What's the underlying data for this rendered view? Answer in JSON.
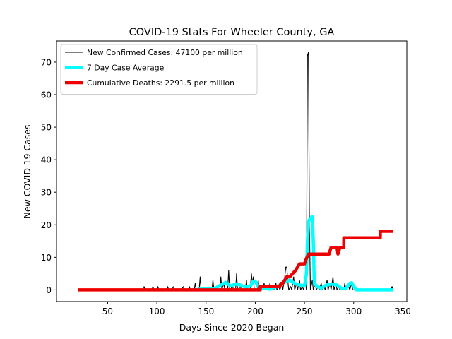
{
  "chart_data": {
    "type": "line",
    "title": "COVID-19 Stats For Wheeler County, GA",
    "xlabel": "Days Since 2020 Began",
    "ylabel": "New COVID-19 Cases",
    "xlim": [
      -2,
      354
    ],
    "ylim": [
      -3.6,
      76.5
    ],
    "xticks": [
      50,
      100,
      150,
      200,
      250,
      300,
      350
    ],
    "yticks": [
      0,
      10,
      20,
      30,
      40,
      50,
      60,
      70
    ],
    "grid": false,
    "legend_position": "top-left",
    "series": [
      {
        "name": "New Confirmed Cases: 47100 per million",
        "color": "#000000",
        "style": "thin",
        "points": [
          [
            20,
            0
          ],
          [
            85,
            0
          ],
          [
            87,
            1
          ],
          [
            88,
            0
          ],
          [
            95,
            0
          ],
          [
            96,
            1
          ],
          [
            97,
            0
          ],
          [
            100,
            0
          ],
          [
            101,
            1
          ],
          [
            102,
            0
          ],
          [
            110,
            0
          ],
          [
            111,
            1
          ],
          [
            112,
            0
          ],
          [
            115,
            0
          ],
          [
            117,
            1
          ],
          [
            118,
            0
          ],
          [
            125,
            0
          ],
          [
            127,
            1
          ],
          [
            128,
            0
          ],
          [
            132,
            0
          ],
          [
            133,
            1
          ],
          [
            134,
            0
          ],
          [
            138,
            0
          ],
          [
            139,
            2
          ],
          [
            140,
            0
          ],
          [
            143,
            0
          ],
          [
            144,
            4
          ],
          [
            145,
            0
          ],
          [
            150,
            0
          ],
          [
            152,
            1
          ],
          [
            153,
            0
          ],
          [
            156,
            0
          ],
          [
            157,
            3
          ],
          [
            158,
            0
          ],
          [
            160,
            0
          ],
          [
            161,
            1
          ],
          [
            162,
            0
          ],
          [
            164,
            0
          ],
          [
            165,
            4
          ],
          [
            166,
            0
          ],
          [
            168,
            2
          ],
          [
            169,
            0
          ],
          [
            172,
            0
          ],
          [
            173,
            6
          ],
          [
            174,
            0
          ],
          [
            177,
            1
          ],
          [
            178,
            0
          ],
          [
            180,
            0
          ],
          [
            181,
            5
          ],
          [
            182,
            0
          ],
          [
            185,
            1
          ],
          [
            186,
            0
          ],
          [
            190,
            0
          ],
          [
            191,
            3
          ],
          [
            192,
            0
          ],
          [
            195,
            0
          ],
          [
            196,
            5
          ],
          [
            197,
            2
          ],
          [
            198,
            4
          ],
          [
            199,
            0
          ],
          [
            202,
            0
          ],
          [
            203,
            3
          ],
          [
            204,
            0
          ],
          [
            206,
            1
          ],
          [
            207,
            0
          ],
          [
            209,
            2
          ],
          [
            210,
            0
          ],
          [
            212,
            1
          ],
          [
            213,
            0
          ],
          [
            215,
            2
          ],
          [
            216,
            0
          ],
          [
            218,
            1
          ],
          [
            219,
            0
          ],
          [
            221,
            2
          ],
          [
            222,
            0
          ],
          [
            224,
            1
          ],
          [
            225,
            0
          ],
          [
            227,
            2
          ],
          [
            228,
            0
          ],
          [
            230,
            4
          ],
          [
            231,
            7
          ],
          [
            232,
            7
          ],
          [
            233,
            3
          ],
          [
            234,
            0
          ],
          [
            236,
            1
          ],
          [
            237,
            0
          ],
          [
            239,
            4
          ],
          [
            240,
            0
          ],
          [
            242,
            2
          ],
          [
            243,
            0
          ],
          [
            245,
            3
          ],
          [
            246,
            0
          ],
          [
            248,
            1
          ],
          [
            249,
            0
          ],
          [
            251,
            2
          ],
          [
            252,
            0
          ],
          [
            253,
            72
          ],
          [
            254,
            73
          ],
          [
            255,
            20
          ],
          [
            256,
            0
          ],
          [
            258,
            3
          ],
          [
            259,
            0
          ],
          [
            261,
            2
          ],
          [
            262,
            0
          ],
          [
            264,
            1
          ],
          [
            265,
            0
          ],
          [
            267,
            2
          ],
          [
            268,
            0
          ],
          [
            270,
            1
          ],
          [
            271,
            0
          ],
          [
            273,
            3
          ],
          [
            274,
            0
          ],
          [
            276,
            2
          ],
          [
            277,
            0
          ],
          [
            279,
            4
          ],
          [
            280,
            0
          ],
          [
            282,
            2
          ],
          [
            283,
            0
          ],
          [
            285,
            1
          ],
          [
            286,
            0
          ],
          [
            290,
            0
          ],
          [
            291,
            2
          ],
          [
            292,
            0
          ],
          [
            295,
            1
          ],
          [
            296,
            0
          ],
          [
            298,
            2
          ],
          [
            299,
            0
          ],
          [
            305,
            0
          ],
          [
            338,
            0
          ],
          [
            339,
            1
          ],
          [
            340,
            0
          ]
        ]
      },
      {
        "name": "7 Day Case Average",
        "color": "#00ffff",
        "style": "thick",
        "points": [
          [
            140,
            0
          ],
          [
            150,
            0.5
          ],
          [
            158,
            0.3
          ],
          [
            165,
            1.5
          ],
          [
            170,
            2.3
          ],
          [
            175,
            1.2
          ],
          [
            180,
            1.8
          ],
          [
            185,
            1.5
          ],
          [
            190,
            0.8
          ],
          [
            195,
            1.2
          ],
          [
            198,
            2.6
          ],
          [
            200,
            2.7
          ],
          [
            203,
            1.0
          ],
          [
            205,
            0.5
          ],
          [
            210,
            0.5
          ],
          [
            215,
            0.2
          ],
          [
            220,
            0.8
          ],
          [
            225,
            1.5
          ],
          [
            230,
            2.5
          ],
          [
            235,
            3.0
          ],
          [
            240,
            2.0
          ],
          [
            245,
            1.5
          ],
          [
            250,
            1.2
          ],
          [
            252,
            5
          ],
          [
            253,
            15
          ],
          [
            254,
            21
          ],
          [
            256,
            22
          ],
          [
            258,
            22.5
          ],
          [
            259,
            15
          ],
          [
            260,
            2
          ],
          [
            263,
            1
          ],
          [
            267,
            0.5
          ],
          [
            272,
            1.5
          ],
          [
            278,
            1.8
          ],
          [
            283,
            1.5
          ],
          [
            288,
            0.5
          ],
          [
            292,
            0.3
          ],
          [
            296,
            2
          ],
          [
            298,
            2.2
          ],
          [
            300,
            1
          ],
          [
            303,
            0
          ],
          [
            340,
            0
          ]
        ]
      },
      {
        "name": "Cumulative Deaths: 2291.5 per million",
        "color": "#ee0000",
        "style": "thick",
        "points": [
          [
            20,
            0
          ],
          [
            205,
            0
          ],
          [
            205,
            1
          ],
          [
            225,
            1
          ],
          [
            226,
            2
          ],
          [
            228,
            2
          ],
          [
            230,
            3
          ],
          [
            232,
            4
          ],
          [
            235,
            4
          ],
          [
            238,
            5
          ],
          [
            241,
            6
          ],
          [
            243,
            7
          ],
          [
            245,
            8
          ],
          [
            250,
            8
          ],
          [
            251,
            9
          ],
          [
            254,
            11
          ],
          [
            270,
            11
          ],
          [
            275,
            11
          ],
          [
            277,
            13
          ],
          [
            283,
            13
          ],
          [
            284,
            11
          ],
          [
            286,
            13
          ],
          [
            290,
            13
          ],
          [
            290,
            16
          ],
          [
            327,
            16
          ],
          [
            327,
            18
          ],
          [
            340,
            18
          ]
        ]
      }
    ]
  }
}
